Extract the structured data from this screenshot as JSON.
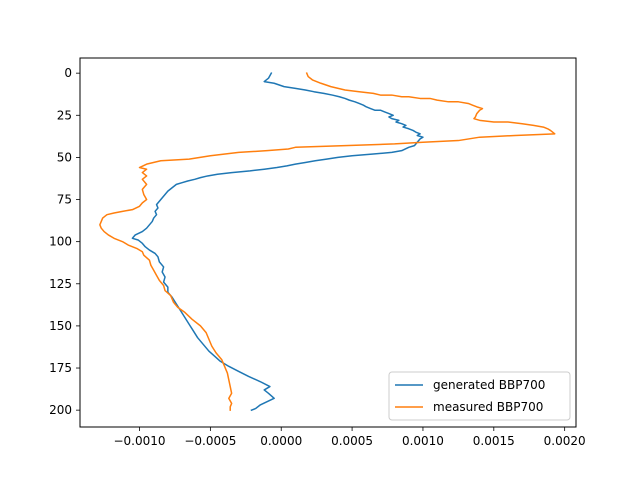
{
  "chart_data": {
    "type": "line",
    "title": "",
    "xlabel": "",
    "ylabel": "",
    "xlim": [
      -0.00142,
      0.00208
    ],
    "ylim": [
      210,
      -9
    ],
    "y_inverted": true,
    "x_ticks": [
      {
        "value": -0.001,
        "label": "−0.0010"
      },
      {
        "value": -0.0005,
        "label": "−0.0005"
      },
      {
        "value": 0.0,
        "label": "0.0000"
      },
      {
        "value": 0.0005,
        "label": "0.0005"
      },
      {
        "value": 0.001,
        "label": "0.0010"
      },
      {
        "value": 0.0015,
        "label": "0.0015"
      },
      {
        "value": 0.002,
        "label": "0.0020"
      }
    ],
    "y_ticks": [
      {
        "value": 0,
        "label": "0"
      },
      {
        "value": 25,
        "label": "25"
      },
      {
        "value": 50,
        "label": "50"
      },
      {
        "value": 75,
        "label": "75"
      },
      {
        "value": 100,
        "label": "100"
      },
      {
        "value": 125,
        "label": "125"
      },
      {
        "value": 150,
        "label": "150"
      },
      {
        "value": 175,
        "label": "175"
      },
      {
        "value": 200,
        "label": "200"
      }
    ],
    "grid": false,
    "legend_position": "lower-right",
    "series": [
      {
        "name": "generated BBP700",
        "color": "#1f77b4",
        "points": [
          [
            -7e-05,
            0
          ],
          [
            -9e-05,
            3
          ],
          [
            -0.00012,
            5
          ],
          [
            -5e-05,
            6
          ],
          [
            2e-05,
            8
          ],
          [
            0.0001,
            9
          ],
          [
            0.00017,
            10
          ],
          [
            0.00023,
            11
          ],
          [
            0.0003,
            12
          ],
          [
            0.00036,
            13
          ],
          [
            0.00041,
            14
          ],
          [
            0.00045,
            15
          ],
          [
            0.00048,
            16
          ],
          [
            0.00052,
            17
          ],
          [
            0.00055,
            18
          ],
          [
            0.00058,
            19
          ],
          [
            0.0006,
            20
          ],
          [
            0.00063,
            21
          ],
          [
            0.00066,
            22
          ],
          [
            0.0007,
            22
          ],
          [
            0.00073,
            23
          ],
          [
            0.00076,
            24
          ],
          [
            0.00079,
            25
          ],
          [
            0.00076,
            26
          ],
          [
            0.00078,
            27
          ],
          [
            0.00083,
            28
          ],
          [
            0.00081,
            29
          ],
          [
            0.00085,
            30
          ],
          [
            0.00088,
            31
          ],
          [
            0.00086,
            32
          ],
          [
            0.0009,
            33
          ],
          [
            0.00093,
            34
          ],
          [
            0.00095,
            35
          ],
          [
            0.00098,
            36
          ],
          [
            0.00096,
            37
          ],
          [
            0.001,
            38
          ],
          [
            0.00098,
            39
          ],
          [
            0.00096,
            41
          ],
          [
            0.00094,
            43
          ],
          [
            0.0009,
            44
          ],
          [
            0.00085,
            46
          ],
          [
            0.00078,
            47
          ],
          [
            0.00065,
            48
          ],
          [
            0.0005,
            49
          ],
          [
            0.0004,
            50
          ],
          [
            0.00032,
            51
          ],
          [
            0.00024,
            52
          ],
          [
            0.00017,
            53
          ],
          [
            0.0001,
            54
          ],
          [
            4e-05,
            55
          ],
          [
            -3e-05,
            56
          ],
          [
            -0.00012,
            57
          ],
          [
            -0.00022,
            58
          ],
          [
            -0.00035,
            59
          ],
          [
            -0.00045,
            60
          ],
          [
            -0.00052,
            61
          ],
          [
            -0.00057,
            62
          ],
          [
            -0.00061,
            63
          ],
          [
            -0.00066,
            64
          ],
          [
            -0.0007,
            65
          ],
          [
            -0.00074,
            66
          ],
          [
            -0.00077,
            68
          ],
          [
            -0.0008,
            70
          ],
          [
            -0.00082,
            72
          ],
          [
            -0.00084,
            74
          ],
          [
            -0.00086,
            76
          ],
          [
            -0.00088,
            78
          ],
          [
            -0.00087,
            80
          ],
          [
            -0.00089,
            82
          ],
          [
            -0.00088,
            84
          ],
          [
            -0.0009,
            86
          ],
          [
            -0.00091,
            88
          ],
          [
            -0.00093,
            90
          ],
          [
            -0.00095,
            92
          ],
          [
            -0.00098,
            94
          ],
          [
            -0.00103,
            96
          ],
          [
            -0.00105,
            98
          ],
          [
            -0.00101,
            99
          ],
          [
            -0.00098,
            101
          ],
          [
            -0.00096,
            103
          ],
          [
            -0.00093,
            105
          ],
          [
            -0.00089,
            107
          ],
          [
            -0.00087,
            109
          ],
          [
            -0.00086,
            112
          ],
          [
            -0.00083,
            115
          ],
          [
            -0.00084,
            118
          ],
          [
            -0.00082,
            121
          ],
          [
            -0.00083,
            124
          ],
          [
            -0.0008,
            127
          ],
          [
            -0.0008,
            130
          ],
          [
            -0.00077,
            133
          ],
          [
            -0.00074,
            137
          ],
          [
            -0.00071,
            141
          ],
          [
            -0.00068,
            145
          ],
          [
            -0.00065,
            149
          ],
          [
            -0.00062,
            153
          ],
          [
            -0.00059,
            157
          ],
          [
            -0.00055,
            161
          ],
          [
            -0.00051,
            165
          ],
          [
            -0.00047,
            168
          ],
          [
            -0.00043,
            171
          ],
          [
            -0.00037,
            174
          ],
          [
            -0.0003,
            177
          ],
          [
            -0.00023,
            180
          ],
          [
            -0.00015,
            183
          ],
          [
            -8e-05,
            186
          ],
          [
            -0.00012,
            188
          ],
          [
            -9e-05,
            190
          ],
          [
            -5e-05,
            193
          ],
          [
            -0.0001,
            195
          ],
          [
            -0.00015,
            197
          ],
          [
            -0.00018,
            199
          ],
          [
            -0.00021,
            200
          ]
        ]
      },
      {
        "name": "measured BBP700",
        "color": "#ff7f0e",
        "points": [
          [
            0.00018,
            0
          ],
          [
            0.00019,
            2
          ],
          [
            0.00022,
            4
          ],
          [
            0.00028,
            6
          ],
          [
            0.00035,
            8
          ],
          [
            0.00045,
            10
          ],
          [
            0.00055,
            11
          ],
          [
            0.00065,
            12
          ],
          [
            0.0007,
            13
          ],
          [
            0.00078,
            13
          ],
          [
            0.00085,
            14
          ],
          [
            0.0009,
            14
          ],
          [
            0.00098,
            15
          ],
          [
            0.00105,
            15
          ],
          [
            0.0011,
            16
          ],
          [
            0.00118,
            17
          ],
          [
            0.00125,
            17
          ],
          [
            0.00132,
            18
          ],
          [
            0.00135,
            19
          ],
          [
            0.00138,
            20
          ],
          [
            0.00142,
            21
          ],
          [
            0.0014,
            22
          ],
          [
            0.00138,
            24
          ],
          [
            0.00137,
            26
          ],
          [
            0.00136,
            27
          ],
          [
            0.0014,
            28
          ],
          [
            0.0015,
            29
          ],
          [
            0.0016,
            29
          ],
          [
            0.0017,
            30
          ],
          [
            0.00178,
            31
          ],
          [
            0.00185,
            32
          ],
          [
            0.00188,
            33
          ],
          [
            0.0019,
            34
          ],
          [
            0.00193,
            36
          ],
          [
            0.00165,
            37
          ],
          [
            0.0014,
            38
          ],
          [
            0.00125,
            40
          ],
          [
            0.001,
            41
          ],
          [
            0.0008,
            42
          ],
          [
            0.00045,
            43
          ],
          [
            0.0001,
            44
          ],
          [
            5e-05,
            45
          ],
          [
            -0.0001,
            46
          ],
          [
            -0.0003,
            47
          ],
          [
            -0.0005,
            49
          ],
          [
            -0.00065,
            51
          ],
          [
            -0.00085,
            52
          ],
          [
            -0.00095,
            54
          ],
          [
            -0.001,
            56
          ],
          [
            -0.00095,
            57
          ],
          [
            -0.00098,
            59
          ],
          [
            -0.00095,
            61
          ],
          [
            -0.00098,
            63
          ],
          [
            -0.00095,
            66
          ],
          [
            -0.00098,
            69
          ],
          [
            -0.00097,
            72
          ],
          [
            -0.00095,
            75
          ],
          [
            -0.00098,
            77
          ],
          [
            -0.001,
            79
          ],
          [
            -0.00105,
            81
          ],
          [
            -0.00112,
            82
          ],
          [
            -0.00118,
            83
          ],
          [
            -0.00123,
            84
          ],
          [
            -0.00126,
            86
          ],
          [
            -0.00127,
            88
          ],
          [
            -0.00128,
            90
          ],
          [
            -0.00127,
            92
          ],
          [
            -0.00125,
            94
          ],
          [
            -0.00122,
            96
          ],
          [
            -0.00118,
            98
          ],
          [
            -0.00112,
            100
          ],
          [
            -0.00108,
            102
          ],
          [
            -0.00102,
            104
          ],
          [
            -0.00098,
            106
          ],
          [
            -0.00097,
            108
          ],
          [
            -0.00093,
            111
          ],
          [
            -0.00092,
            114
          ],
          [
            -0.0009,
            117
          ],
          [
            -0.00088,
            120
          ],
          [
            -0.00086,
            123
          ],
          [
            -0.00083,
            126
          ],
          [
            -0.00082,
            129
          ],
          [
            -0.00078,
            132
          ],
          [
            -0.00076,
            136
          ],
          [
            -0.00073,
            139
          ],
          [
            -0.00068,
            142
          ],
          [
            -0.00063,
            146
          ],
          [
            -0.00057,
            150
          ],
          [
            -0.00053,
            154
          ],
          [
            -0.00051,
            158
          ],
          [
            -0.00049,
            162
          ],
          [
            -0.00046,
            166
          ],
          [
            -0.00042,
            170
          ],
          [
            -0.0004,
            174
          ],
          [
            -0.00038,
            178
          ],
          [
            -0.00037,
            182
          ],
          [
            -0.00036,
            186
          ],
          [
            -0.00035,
            190
          ],
          [
            -0.00037,
            193
          ],
          [
            -0.00035,
            196
          ],
          [
            -0.00036,
            198
          ],
          [
            -0.00036,
            200
          ]
        ]
      }
    ]
  }
}
